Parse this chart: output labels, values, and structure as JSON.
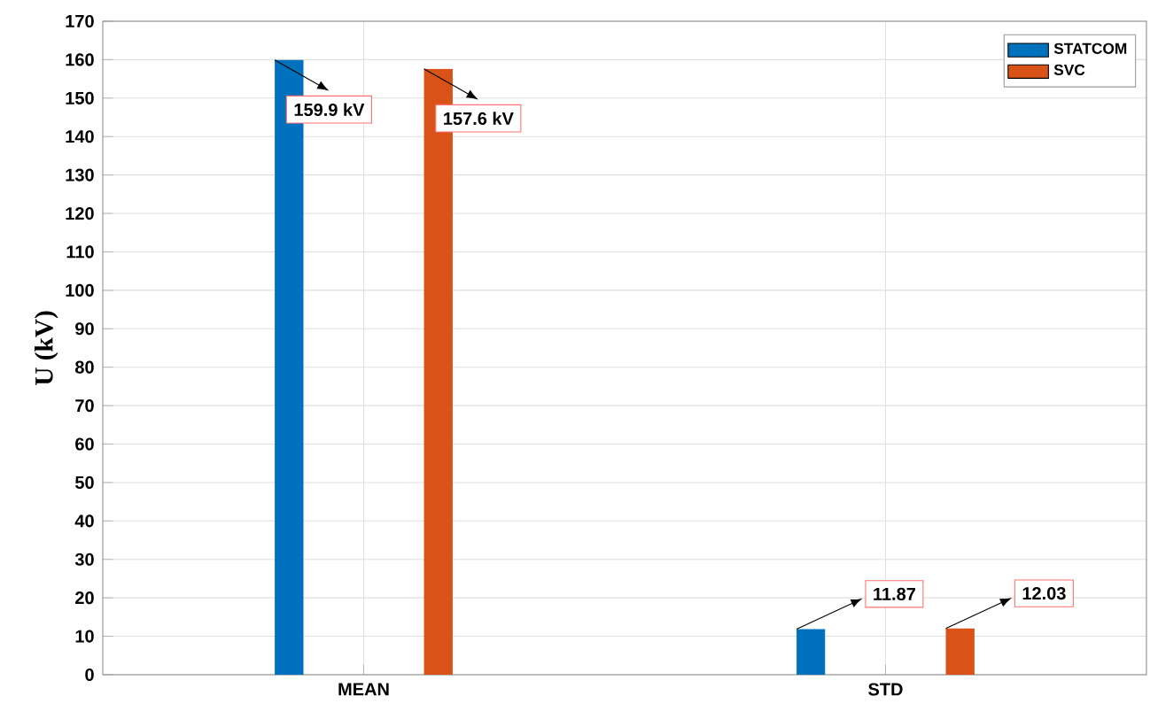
{
  "chart_data": {
    "type": "bar",
    "ylabel": "U (kV)",
    "categories": [
      "MEAN",
      "STD"
    ],
    "series": [
      {
        "name": "STATCOM",
        "color": "#0072bd",
        "values": [
          159.9,
          11.87
        ],
        "value_labels": [
          "159.9 kV",
          "11.87"
        ]
      },
      {
        "name": "SVC",
        "color": "#d95319",
        "values": [
          157.6,
          12.03
        ],
        "value_labels": [
          "157.6 kV",
          "12.03"
        ]
      }
    ],
    "ylim": [
      0,
      170
    ],
    "yticks": [
      0,
      10,
      20,
      30,
      40,
      50,
      60,
      70,
      80,
      90,
      100,
      110,
      120,
      130,
      140,
      150,
      160,
      170
    ],
    "grid": true,
    "legend": "top right"
  }
}
